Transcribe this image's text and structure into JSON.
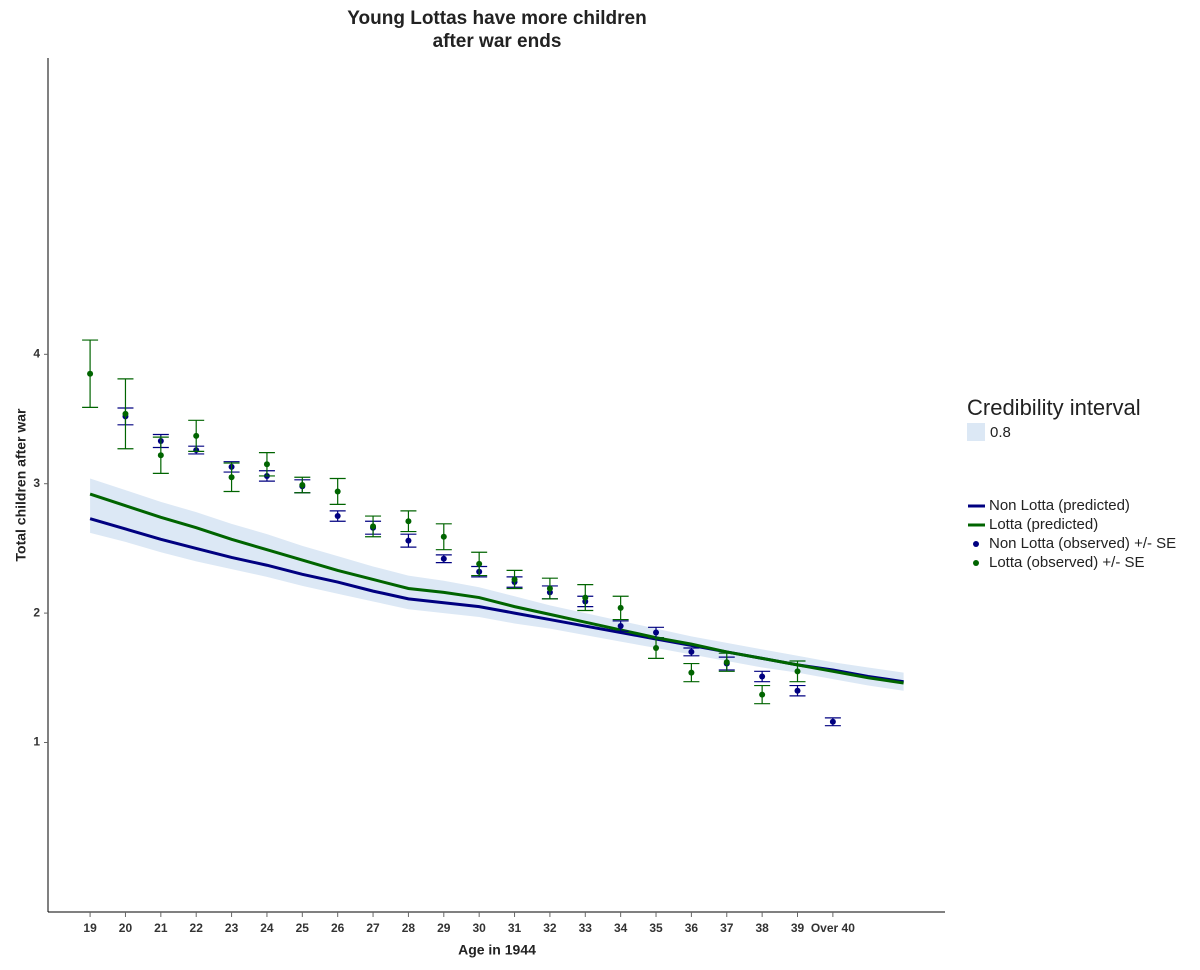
{
  "chart_data": {
    "type": "line",
    "title": [
      "Young Lottas have more children",
      "after war ends"
    ],
    "xlabel": "Age in 1944",
    "ylabel": "Total children after war",
    "xlim": [
      17.81,
      43.17
    ],
    "ylim": [
      -0.31,
      6.29
    ],
    "xticks": [
      19,
      20,
      21,
      22,
      23,
      24,
      25,
      26,
      27,
      28,
      29,
      30,
      31,
      32,
      33,
      34,
      35,
      36,
      37,
      38,
      39,
      {
        "value": 40,
        "label": "Over 40"
      }
    ],
    "yticks": [
      1,
      2,
      3,
      4
    ],
    "band": {
      "legend_title": "Credibility interval",
      "name": "0.8",
      "color": "#dce8f5",
      "x": [
        19,
        20,
        21,
        22,
        23,
        24,
        25,
        26,
        27,
        28,
        29,
        30,
        31,
        32,
        33,
        34,
        35,
        36,
        37,
        38,
        39,
        40,
        41,
        42
      ],
      "lower": [
        2.62,
        2.55,
        2.47,
        2.4,
        2.34,
        2.28,
        2.21,
        2.15,
        2.09,
        2.03,
        2.0,
        1.97,
        1.92,
        1.88,
        1.83,
        1.78,
        1.73,
        1.68,
        1.63,
        1.58,
        1.54,
        1.49,
        1.44,
        1.4
      ],
      "upper": [
        3.04,
        2.95,
        2.86,
        2.78,
        2.69,
        2.61,
        2.52,
        2.44,
        2.36,
        2.29,
        2.25,
        2.2,
        2.13,
        2.06,
        2.0,
        1.94,
        1.88,
        1.82,
        1.77,
        1.72,
        1.67,
        1.62,
        1.58,
        1.54
      ]
    },
    "series": [
      {
        "name": "Non Lotta (predicted)",
        "kind": "line",
        "color": "#000080",
        "x": [
          19,
          20,
          21,
          22,
          23,
          24,
          25,
          26,
          27,
          28,
          29,
          30,
          31,
          32,
          33,
          34,
          35,
          36,
          37,
          38,
          39,
          40,
          41,
          42
        ],
        "values": [
          2.73,
          2.65,
          2.57,
          2.5,
          2.43,
          2.37,
          2.3,
          2.24,
          2.17,
          2.11,
          2.08,
          2.05,
          2.0,
          1.95,
          1.9,
          1.85,
          1.8,
          1.75,
          1.7,
          1.65,
          1.6,
          1.56,
          1.51,
          1.47
        ]
      },
      {
        "name": "Lotta (predicted)",
        "kind": "line",
        "color": "#006400",
        "x": [
          19,
          20,
          21,
          22,
          23,
          24,
          25,
          26,
          27,
          28,
          29,
          30,
          31,
          32,
          33,
          34,
          35,
          36,
          37,
          38,
          39,
          40,
          41,
          42
        ],
        "values": [
          2.92,
          2.83,
          2.74,
          2.66,
          2.57,
          2.49,
          2.41,
          2.33,
          2.26,
          2.19,
          2.16,
          2.12,
          2.05,
          1.99,
          1.93,
          1.87,
          1.81,
          1.76,
          1.7,
          1.65,
          1.6,
          1.55,
          1.5,
          1.46
        ]
      },
      {
        "name": "Non Lotta (observed) +/- SE",
        "kind": "points",
        "color": "#000080",
        "x": [
          20,
          21,
          22,
          23,
          24,
          25,
          26,
          27,
          28,
          29,
          30,
          31,
          32,
          33,
          34,
          35,
          36,
          37,
          38,
          39,
          40
        ],
        "values": [
          3.52,
          3.33,
          3.26,
          3.13,
          3.06,
          2.98,
          2.75,
          2.66,
          2.56,
          2.42,
          2.32,
          2.24,
          2.16,
          2.09,
          1.9,
          1.85,
          1.7,
          1.61,
          1.51,
          1.4,
          1.16
        ],
        "errors": [
          0.065,
          0.05,
          0.03,
          0.04,
          0.04,
          0.05,
          0.04,
          0.05,
          0.05,
          0.03,
          0.04,
          0.04,
          0.05,
          0.04,
          0.04,
          0.04,
          0.03,
          0.05,
          0.04,
          0.04,
          0.03
        ]
      },
      {
        "name": "Lotta (observed) +/- SE",
        "kind": "points",
        "color": "#006400",
        "x": [
          19,
          20,
          21,
          22,
          23,
          24,
          25,
          26,
          27,
          28,
          29,
          30,
          31,
          32,
          33,
          34,
          35,
          36,
          37,
          38,
          39
        ],
        "values": [
          3.85,
          3.54,
          3.22,
          3.37,
          3.05,
          3.15,
          2.99,
          2.94,
          2.67,
          2.71,
          2.59,
          2.38,
          2.26,
          2.19,
          2.12,
          2.04,
          1.73,
          1.54,
          1.62,
          1.37,
          1.55
        ],
        "errors": [
          0.26,
          0.27,
          0.14,
          0.12,
          0.11,
          0.09,
          0.06,
          0.1,
          0.08,
          0.08,
          0.1,
          0.09,
          0.07,
          0.08,
          0.1,
          0.09,
          0.08,
          0.07,
          0.07,
          0.07,
          0.08
        ]
      }
    ]
  }
}
